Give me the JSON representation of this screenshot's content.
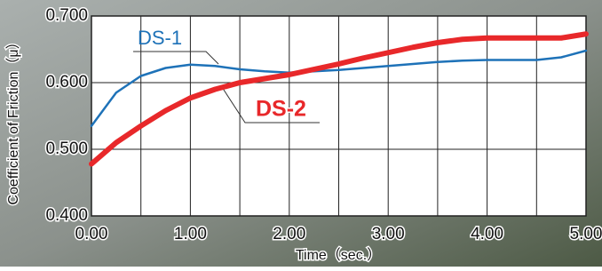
{
  "chart_data": {
    "type": "line",
    "x_label": "Time（sec.）",
    "y_label": "Coefficient of Friction（μ）",
    "x": [
      0,
      0.25,
      0.5,
      0.75,
      1,
      1.25,
      1.5,
      1.75,
      2,
      2.25,
      2.5,
      2.75,
      3,
      3.25,
      3.5,
      3.75,
      4,
      4.25,
      4.5,
      4.75,
      5
    ],
    "series": [
      {
        "name": "DS-1",
        "color": "#1e72b8",
        "values": [
          0.535,
          0.585,
          0.61,
          0.622,
          0.627,
          0.625,
          0.62,
          0.617,
          0.615,
          0.617,
          0.619,
          0.622,
          0.625,
          0.628,
          0.631,
          0.633,
          0.634,
          0.634,
          0.634,
          0.638,
          0.648
        ]
      },
      {
        "name": "DS-2",
        "color": "#e8282a",
        "values": [
          0.478,
          0.51,
          0.535,
          0.558,
          0.577,
          0.59,
          0.6,
          0.606,
          0.612,
          0.62,
          0.628,
          0.637,
          0.645,
          0.653,
          0.66,
          0.665,
          0.667,
          0.667,
          0.667,
          0.667,
          0.673
        ]
      }
    ],
    "xlim": [
      0,
      5
    ],
    "ylim": [
      0.4,
      0.7
    ],
    "xticks": [
      {
        "value": 0,
        "label": "0.00"
      },
      {
        "value": 1,
        "label": "1.00"
      },
      {
        "value": 2,
        "label": "2.00"
      },
      {
        "value": 3,
        "label": "3.00"
      },
      {
        "value": 4,
        "label": "4.00"
      },
      {
        "value": 5,
        "label": "5.00"
      }
    ],
    "xgrid": [
      0.5,
      1,
      1.5,
      2,
      2.5,
      3,
      3.5,
      4,
      4.5
    ],
    "yticks": [
      {
        "value": 0.4,
        "label": "0.400"
      },
      {
        "value": 0.5,
        "label": "0.500"
      },
      {
        "value": 0.6,
        "label": "0.600"
      },
      {
        "value": 0.7,
        "label": "0.700"
      }
    ],
    "grid": true
  }
}
